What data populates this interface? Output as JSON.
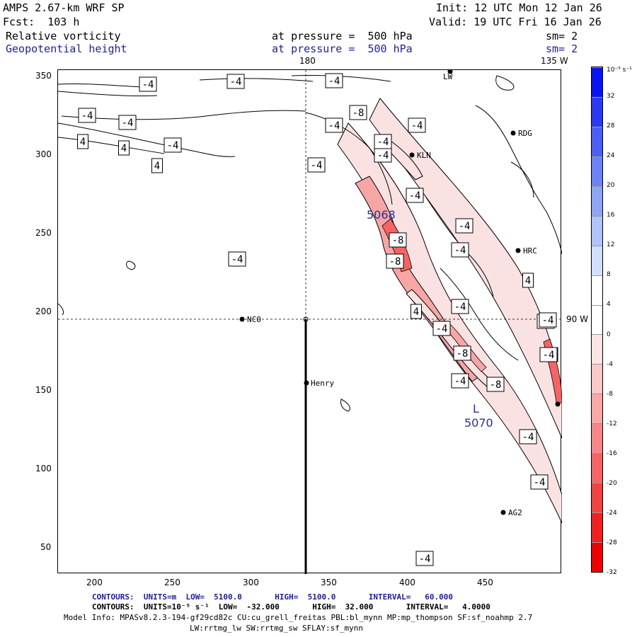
{
  "header": {
    "model": "AMPS 2.67-km WRF SP",
    "forecast": "Fcst:  103 h",
    "init": "Init: 12 UTC Mon 12 Jan 26",
    "valid": "Valid: 19 UTC Fri 16 Jan 26",
    "field1": "Relative vorticity",
    "field1_level": "at pressure =  500 hPa",
    "field1_smooth": "sm= 2",
    "field2": "Geopotential height",
    "field2_level": "at pressure =  500 hPa",
    "field2_smooth": "sm= 2"
  },
  "map": {
    "x_ticks": [
      "200",
      "250",
      "300",
      "350",
      "400",
      "450"
    ],
    "y_ticks": [
      "350",
      "300",
      "250",
      "200",
      "150",
      "100",
      "50"
    ],
    "meridian_labels": [
      "180",
      "135 W",
      "90 W"
    ],
    "stations": [
      "LW",
      "RDG",
      "KLN",
      "HRC",
      "NCO",
      "Henry",
      "AG2"
    ],
    "contour_labels": [
      "-4",
      "-4",
      "-4",
      "-4",
      "-4",
      "-8",
      "-4",
      "-4",
      "-4",
      "4",
      "4",
      "4",
      "-4",
      "-4",
      "-4",
      "-4",
      "-4",
      "-4",
      "4",
      "-8",
      "-8",
      "4",
      "-4",
      "-4",
      "-4",
      "-8",
      "-8",
      "-4",
      "-8",
      "-4",
      "-4",
      "-4",
      "-4",
      "-4",
      "-4"
    ],
    "height_labels": [
      "5068",
      "L",
      "5070"
    ]
  },
  "colorbar": {
    "unit": "10⁻⁵ s⁻¹",
    "labels": [
      "32",
      "28",
      "24",
      "20",
      "16",
      "12",
      "8",
      "4",
      "0",
      "-4",
      "-8",
      "-12",
      "-16",
      "-20",
      "-24",
      "-28",
      "-32"
    ],
    "colors": [
      "#0a14f0",
      "#2a3af2",
      "#4b5ff3",
      "#6c82f5",
      "#8ea4f7",
      "#b0c3fa",
      "#d2dffc",
      "#ffffff",
      "#ffffff",
      "#fde4e4",
      "#fbc8c8",
      "#f9a8a8",
      "#f78787",
      "#f46464",
      "#f24242",
      "#f02020",
      "#ee0000"
    ]
  },
  "footer": {
    "contours1": "CONTOURS:  UNITS=m  LOW=  5100.0       HIGH=  5100.0       INTERVAL=   60.000",
    "contours2": "CONTOURS:  UNITS=10⁻⁵ s⁻¹  LOW=  -32.000       HIGH=  32.000       INTERVAL=   4.0000",
    "model_info": "Model Info: MPASv8.2.3-194-gf29cd82c CU:cu_grell_freitas PBL:bl_mynn MP:mp_thompson SF:sf_noahmp 2.7",
    "model_info2": "LW:rrtmg_lw SW:rrtmg_sw SFLAY:sf_mynn"
  }
}
